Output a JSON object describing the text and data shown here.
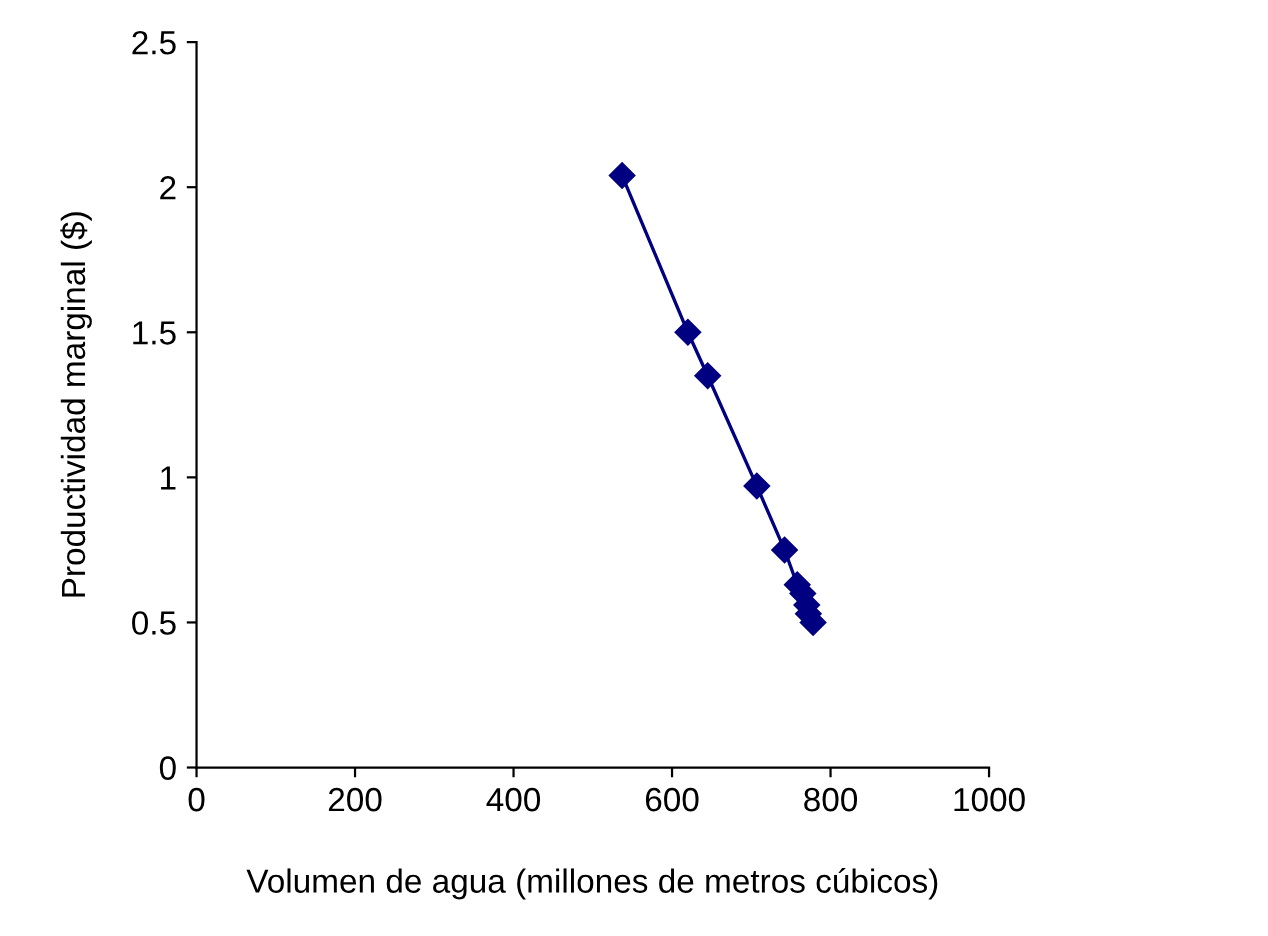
{
  "chart_data": {
    "type": "line",
    "xlabel": "Volumen de agua (millones de metros cúbicos)",
    "ylabel": "Productividad marginal ($)",
    "series": [
      {
        "color": "#000080",
        "x": [
          537,
          620,
          645,
          707,
          742,
          758,
          765,
          770,
          772,
          778
        ],
        "values": [
          2.04,
          1.5,
          1.35,
          0.97,
          0.75,
          0.63,
          0.6,
          0.56,
          0.53,
          0.5
        ]
      }
    ],
    "xlim": [
      0,
      1000
    ],
    "xticks": [
      0,
      200,
      400,
      600,
      800,
      1000
    ],
    "ylim": [
      0,
      2.5
    ],
    "yticks": [
      0,
      0.5,
      1,
      1.5,
      2,
      2.5
    ],
    "marker": "diamond",
    "line_style": "solid",
    "grid": false,
    "legend": false
  }
}
